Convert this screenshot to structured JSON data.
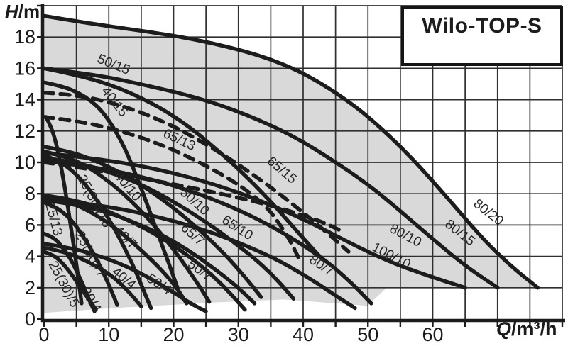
{
  "title_box": {
    "label": "Wilo-TOP-S"
  },
  "axis_titles": {
    "y_symbol": "H",
    "y_rest": "/m",
    "x_symbol": "Q",
    "x_rest": "/m³/h"
  },
  "colors": {
    "background": "#ffffff",
    "operating_area_fill": "#d9d9d9",
    "grid": "#2f2f2f",
    "curve": "#1c1c1c",
    "text": "#1a1a1a",
    "curve_label": "#262626"
  },
  "chart_data": {
    "type": "line",
    "title": "Wilo-TOP-S",
    "xlabel": "Q/m³/h",
    "ylabel": "H/m",
    "xlim": [
      0,
      80
    ],
    "ylim": [
      0,
      20
    ],
    "x_tick_labels": [
      0,
      10,
      20,
      30,
      40,
      50,
      60
    ],
    "y_tick_labels": [
      0,
      2,
      4,
      6,
      8,
      10,
      12,
      14,
      16,
      18
    ],
    "grid": {
      "x_step": 5,
      "y_step": 2,
      "visible": true
    },
    "legend_position": "none",
    "envelope_top": [
      [
        0,
        19.35
      ],
      [
        8,
        18.8
      ],
      [
        16,
        18.35
      ],
      [
        24,
        17.8
      ],
      [
        32,
        17.0
      ],
      [
        38,
        16.1
      ],
      [
        43,
        15.0
      ],
      [
        48,
        13.6
      ],
      [
        52,
        12.2
      ],
      [
        56,
        10.6
      ],
      [
        60,
        8.8
      ],
      [
        64,
        6.9
      ],
      [
        68,
        5.0
      ],
      [
        72,
        3.4
      ],
      [
        76.2,
        2.0
      ]
    ],
    "envelope_bottom": [
      [
        76.2,
        2.0
      ],
      [
        52.9,
        2.0
      ],
      [
        49.9,
        0.85
      ],
      [
        37,
        1.25
      ],
      [
        26,
        1.05
      ],
      [
        10.7,
        0.7
      ],
      [
        0,
        0.4
      ]
    ],
    "series": [
      {
        "name": "65/15",
        "style": "dashed",
        "label": {
          "text": "65/15",
          "q": 36.3,
          "h": 9.3,
          "rot": 40
        },
        "points": [
          [
            0,
            14.45
          ],
          [
            5,
            14.3
          ],
          [
            10,
            13.85
          ],
          [
            15,
            13.2
          ],
          [
            20,
            12.3
          ],
          [
            24,
            11.4
          ],
          [
            28,
            10.4
          ],
          [
            32,
            9.3
          ],
          [
            36,
            8.1
          ],
          [
            40,
            6.8
          ],
          [
            44,
            5.4
          ],
          [
            47,
            4.3
          ]
        ]
      },
      {
        "name": "65/13",
        "style": "dashed",
        "label": {
          "text": "65/13",
          "q": 20.6,
          "h": 11.2,
          "rot": 25
        },
        "points": [
          [
            0,
            12.9
          ],
          [
            5,
            12.65
          ],
          [
            10,
            12.2
          ],
          [
            15,
            11.6
          ],
          [
            20,
            10.8
          ],
          [
            24,
            10.0
          ],
          [
            28,
            9.1
          ],
          [
            31,
            8.3
          ],
          [
            34,
            7.3
          ],
          [
            36,
            6.3
          ],
          [
            38,
            5.0
          ],
          [
            39.3,
            3.9
          ]
        ]
      },
      {
        "name": "65-lower",
        "style": "dashed",
        "label": null,
        "points": [
          [
            0,
            10.0
          ],
          [
            5,
            9.7
          ],
          [
            10,
            9.35
          ],
          [
            15,
            9.0
          ],
          [
            20,
            8.6
          ],
          [
            25,
            8.2
          ],
          [
            30,
            7.75
          ],
          [
            35,
            7.25
          ],
          [
            39,
            6.75
          ],
          [
            43,
            6.2
          ],
          [
            46,
            5.6
          ]
        ]
      },
      {
        "name": "80/20",
        "style": "solid",
        "label": {
          "text": "80/20",
          "q": 68.2,
          "h": 6.6,
          "rot": 38
        },
        "points": [
          [
            0,
            19.35
          ],
          [
            8,
            18.8
          ],
          [
            16,
            18.35
          ],
          [
            24,
            17.8
          ],
          [
            32,
            17.0
          ],
          [
            38,
            16.1
          ],
          [
            43,
            15.0
          ],
          [
            48,
            13.6
          ],
          [
            52,
            12.2
          ],
          [
            56,
            10.6
          ],
          [
            60,
            8.8
          ],
          [
            64,
            6.9
          ],
          [
            68,
            5.0
          ],
          [
            72,
            3.4
          ],
          [
            76.2,
            2.0
          ]
        ]
      },
      {
        "name": "80/15",
        "style": "solid",
        "label": {
          "text": "80/15",
          "q": 63.8,
          "h": 5.3,
          "rot": 38
        },
        "points": [
          [
            0,
            16.0
          ],
          [
            8,
            15.6
          ],
          [
            16,
            14.9
          ],
          [
            24,
            14.1
          ],
          [
            31,
            13.1
          ],
          [
            38,
            11.8
          ],
          [
            44,
            10.3
          ],
          [
            50,
            8.6
          ],
          [
            55,
            6.9
          ],
          [
            60,
            5.1
          ],
          [
            65,
            3.4
          ],
          [
            70,
            2.0
          ]
        ]
      },
      {
        "name": "80/10",
        "style": "solid",
        "label": {
          "text": "80/10",
          "q": 55.5,
          "h": 5.1,
          "rot": 28
        },
        "points": [
          [
            0,
            10.6
          ],
          [
            8,
            10.25
          ],
          [
            16,
            9.7
          ],
          [
            24,
            8.9
          ],
          [
            32,
            7.8
          ],
          [
            40,
            6.4
          ],
          [
            47,
            4.9
          ],
          [
            53,
            3.7
          ],
          [
            59,
            2.8
          ],
          [
            65,
            2.0
          ]
        ]
      },
      {
        "name": "100/10",
        "style": "solid",
        "label": {
          "text": "100/10",
          "q": 53.3,
          "h": 3.8,
          "rot": 28
        },
        "points": [
          [
            0,
            10.1
          ],
          [
            8,
            9.7
          ],
          [
            16,
            9.0
          ],
          [
            24,
            8.0
          ],
          [
            31,
            6.8
          ],
          [
            37,
            5.5
          ],
          [
            43,
            3.9
          ],
          [
            47,
            2.5
          ],
          [
            50.5,
            1.0
          ]
        ]
      },
      {
        "name": "80/7",
        "style": "solid",
        "label": {
          "text": "80/7",
          "q": 42.5,
          "h": 3.2,
          "rot": 33
        },
        "points": [
          [
            0,
            7.7
          ],
          [
            8,
            7.3
          ],
          [
            16,
            6.7
          ],
          [
            24,
            5.8
          ],
          [
            30,
            4.9
          ],
          [
            36,
            3.8
          ],
          [
            41,
            2.6
          ],
          [
            45,
            1.5
          ],
          [
            48,
            0.7
          ]
        ]
      },
      {
        "name": "50/15",
        "style": "solid",
        "label": {
          "text": "50/15",
          "q": 10.5,
          "h": 16.0,
          "rot": 22
        },
        "points": [
          [
            0,
            16.0
          ],
          [
            6,
            15.5
          ],
          [
            12,
            14.7
          ],
          [
            18,
            13.5
          ],
          [
            23,
            12.1
          ],
          [
            27,
            10.7
          ],
          [
            31,
            9.2
          ],
          [
            35,
            7.5
          ],
          [
            38,
            6.1
          ],
          [
            41,
            4.7
          ],
          [
            43,
            3.8
          ]
        ]
      },
      {
        "name": "40/15",
        "style": "solid",
        "label": {
          "text": "40/15",
          "q": 10.4,
          "h": 13.7,
          "rot": 52
        },
        "points": [
          [
            0,
            15.1
          ],
          [
            3,
            14.85
          ],
          [
            6,
            14.3
          ],
          [
            8.5,
            13.5
          ],
          [
            10.5,
            12.4
          ],
          [
            12.5,
            10.9
          ],
          [
            14,
            9.4
          ],
          [
            15.5,
            7.8
          ],
          [
            17,
            6.1
          ],
          [
            18.5,
            4.4
          ],
          [
            20,
            2.7
          ],
          [
            21,
            1.5
          ]
        ]
      },
      {
        "name": "25/13",
        "style": "solid",
        "label": {
          "text": "25/13",
          "q": 0.9,
          "h": 6.3,
          "rot": 75
        },
        "points": [
          [
            0.3,
            12.9
          ],
          [
            1.2,
            12.2
          ],
          [
            2.0,
            11.0
          ],
          [
            2.8,
            9.4
          ],
          [
            3.6,
            7.4
          ],
          [
            4.4,
            5.2
          ],
          [
            5.2,
            2.9
          ],
          [
            5.8,
            1.0
          ]
        ]
      },
      {
        "name": "25(30)/10",
        "style": "solid",
        "label": {
          "text": "25(30)/10",
          "q": 7.2,
          "h": 7.4,
          "rot": 62
        },
        "points": [
          [
            0,
            10.45
          ],
          [
            2,
            10.15
          ],
          [
            4,
            9.6
          ],
          [
            6,
            8.8
          ],
          [
            8,
            7.7
          ],
          [
            10,
            6.4
          ],
          [
            12,
            4.9
          ],
          [
            14,
            3.2
          ],
          [
            15.5,
            1.7
          ],
          [
            16.5,
            0.7
          ]
        ]
      },
      {
        "name": "40/10",
        "style": "solid",
        "label": {
          "text": "40/10",
          "q": 12.4,
          "h": 8.3,
          "rot": 50
        },
        "points": [
          [
            0,
            10.7
          ],
          [
            3,
            10.4
          ],
          [
            6,
            9.9
          ],
          [
            9,
            9.1
          ],
          [
            12,
            8.1
          ],
          [
            15,
            6.9
          ],
          [
            18,
            5.5
          ],
          [
            21,
            3.9
          ],
          [
            23.5,
            2.4
          ],
          [
            25.5,
            1.1
          ]
        ]
      },
      {
        "name": "50/10",
        "style": "solid",
        "label": {
          "text": "50/10",
          "q": 22.8,
          "h": 7.3,
          "rot": 42
        },
        "points": [
          [
            0,
            11.0
          ],
          [
            4,
            10.7
          ],
          [
            8,
            10.1
          ],
          [
            12,
            9.3
          ],
          [
            16,
            8.3
          ],
          [
            20,
            7.1
          ],
          [
            24,
            5.7
          ],
          [
            28,
            4.1
          ],
          [
            31,
            2.7
          ],
          [
            33.5,
            1.4
          ]
        ]
      },
      {
        "name": "65/10",
        "style": "solid",
        "label": {
          "text": "65/10",
          "q": 29.5,
          "h": 5.6,
          "rot": 33
        },
        "points": [
          [
            0,
            10.3
          ],
          [
            5,
            10.0
          ],
          [
            10,
            9.4
          ],
          [
            15,
            8.6
          ],
          [
            20,
            7.5
          ],
          [
            25,
            6.2
          ],
          [
            29,
            5.0
          ],
          [
            33,
            3.7
          ],
          [
            36,
            2.5
          ],
          [
            38.5,
            1.3
          ]
        ]
      },
      {
        "name": "65/7",
        "style": "solid",
        "label": {
          "text": "65/7",
          "q": 22.5,
          "h": 5.2,
          "rot": 42
        },
        "points": [
          [
            0,
            7.6
          ],
          [
            5,
            7.3
          ],
          [
            10,
            6.8
          ],
          [
            15,
            6.0
          ],
          [
            19,
            5.2
          ],
          [
            23,
            4.2
          ],
          [
            27,
            3.0
          ],
          [
            30,
            2.0
          ],
          [
            32.5,
            1.0
          ]
        ]
      },
      {
        "name": "25(30)/7",
        "style": "solid",
        "label": {
          "text": "25(30)/7",
          "q": 6.6,
          "h": 4.0,
          "rot": 62
        },
        "points": [
          [
            0,
            7.45
          ],
          [
            1.5,
            7.2
          ],
          [
            3,
            6.8
          ],
          [
            4.5,
            6.2
          ],
          [
            6,
            5.3
          ],
          [
            7.5,
            4.3
          ],
          [
            9,
            3.1
          ],
          [
            10.3,
            1.9
          ],
          [
            11.3,
            0.9
          ]
        ]
      },
      {
        "name": "40/7",
        "style": "solid",
        "label": {
          "text": "40/7",
          "q": 12.1,
          "h": 5.0,
          "rot": 45
        },
        "points": [
          [
            0,
            7.9
          ],
          [
            3,
            7.6
          ],
          [
            6,
            7.1
          ],
          [
            9,
            6.4
          ],
          [
            12,
            5.5
          ],
          [
            15,
            4.4
          ],
          [
            18,
            3.2
          ],
          [
            20.5,
            2.0
          ],
          [
            22,
            1.0
          ]
        ]
      },
      {
        "name": "50/7",
        "style": "solid",
        "label": {
          "text": "50/7",
          "q": 23.7,
          "h": 2.9,
          "rot": 35
        },
        "points": [
          [
            0,
            7.9
          ],
          [
            4,
            7.65
          ],
          [
            8,
            7.2
          ],
          [
            12,
            6.5
          ],
          [
            16,
            5.7
          ],
          [
            20,
            4.7
          ],
          [
            24,
            3.5
          ],
          [
            27,
            2.4
          ],
          [
            29.5,
            1.3
          ],
          [
            31,
            0.6
          ]
        ]
      },
      {
        "name": "25(30)/5",
        "style": "solid",
        "label": {
          "text": "25(30)/5",
          "q": 2.5,
          "h": 2.1,
          "rot": 62
        },
        "points": [
          [
            0,
            5.45
          ],
          [
            1,
            5.3
          ],
          [
            2,
            5.0
          ],
          [
            3,
            4.5
          ],
          [
            4,
            3.9
          ],
          [
            5,
            3.1
          ],
          [
            6,
            2.2
          ],
          [
            7,
            1.2
          ],
          [
            7.8,
            0.5
          ]
        ]
      },
      {
        "name": "30/4",
        "style": "solid",
        "label": {
          "text": "30/4",
          "q": 6.7,
          "h": 1.1,
          "rot": 60
        },
        "points": [
          [
            0,
            4.3
          ],
          [
            1,
            4.15
          ],
          [
            2,
            3.9
          ],
          [
            3,
            3.5
          ],
          [
            4,
            3.0
          ],
          [
            5,
            2.4
          ],
          [
            6.5,
            1.5
          ],
          [
            8,
            0.6
          ]
        ]
      },
      {
        "name": "40/4",
        "style": "solid",
        "label": {
          "text": "40/4",
          "q": 11.9,
          "h": 2.4,
          "rot": 40
        },
        "points": [
          [
            0,
            4.55
          ],
          [
            2.5,
            4.35
          ],
          [
            5,
            4.0
          ],
          [
            7.5,
            3.5
          ],
          [
            10,
            2.9
          ],
          [
            12,
            2.2
          ],
          [
            13.8,
            1.4
          ],
          [
            15,
            0.8
          ]
        ]
      },
      {
        "name": "50/4",
        "style": "solid",
        "label": {
          "text": "50/4",
          "q": 17.4,
          "h": 2.0,
          "rot": 33
        },
        "points": [
          [
            0,
            4.8
          ],
          [
            4,
            4.55
          ],
          [
            8,
            4.1
          ],
          [
            12,
            3.5
          ],
          [
            16,
            2.7
          ],
          [
            20,
            1.7
          ],
          [
            23,
            0.9
          ],
          [
            25,
            0.5
          ]
        ]
      }
    ]
  }
}
